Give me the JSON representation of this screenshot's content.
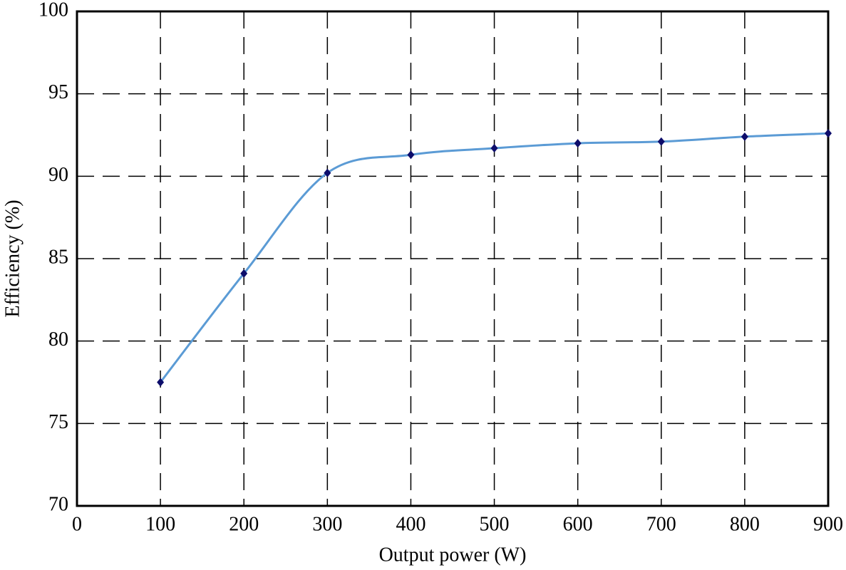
{
  "chart_data": {
    "type": "line",
    "x": [
      100,
      200,
      300,
      400,
      500,
      600,
      700,
      800,
      900
    ],
    "values": [
      77.5,
      84.1,
      90.2,
      91.3,
      91.7,
      92.0,
      92.1,
      92.4,
      92.6
    ],
    "color": "#5b9bd5",
    "marker_color": "#0d0d6b",
    "xlabel": "Output power (W)",
    "ylabel": "Efficiency (%)",
    "xlim": [
      0,
      900
    ],
    "xticks": [
      0,
      100,
      200,
      300,
      400,
      500,
      600,
      700,
      800,
      900
    ],
    "ylim": [
      70,
      100
    ],
    "yticks": [
      70,
      75,
      80,
      85,
      90,
      95,
      100
    ],
    "grid": true
  }
}
